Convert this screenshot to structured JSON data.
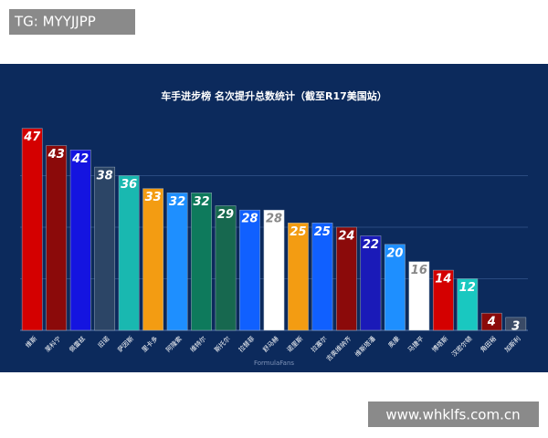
{
  "watermark_top": "TG: MYYJJPP",
  "watermark_bottom": "www.whklfs.com.cn",
  "source": "FormulaFans",
  "chart_data": {
    "type": "bar",
    "title": "车手进步榜 名次提升总数统计（截至R17美国站）",
    "categories": [
      "维斯",
      "莱科宁",
      "佩雷兹",
      "旧诺",
      "萨因斯",
      "里卡多",
      "阿隆索",
      "维特尔",
      "斯托尔",
      "拉替菲",
      "舒马赫",
      "诺里斯",
      "拉塞尔",
      "吉奥维纳齐",
      "维斯塔潘",
      "奥康",
      "马捷平",
      "博塔斯",
      "汉密尔顿",
      "角田裕",
      "加斯利"
    ],
    "values": [
      47,
      43,
      42,
      38,
      36,
      33,
      32,
      32,
      29,
      28,
      28,
      25,
      25,
      24,
      22,
      20,
      16,
      14,
      12,
      4,
      3
    ],
    "colors": [
      "#d40000",
      "#8b0a0a",
      "#1414e0",
      "#2c4566",
      "#19b8b0",
      "#f39c12",
      "#1e8fff",
      "#0e7a5c",
      "#17684f",
      "#1060ff",
      "#ffffff",
      "#f39c12",
      "#1060ff",
      "#8b0a0a",
      "#1a1ab8",
      "#1e8fff",
      "#ffffff",
      "#d40000",
      "#19c8c0",
      "#8b0a0a",
      "#3a4a66"
    ],
    "ylim": [
      0,
      48
    ],
    "yticks": [
      12,
      24,
      36
    ],
    "grid": true
  }
}
